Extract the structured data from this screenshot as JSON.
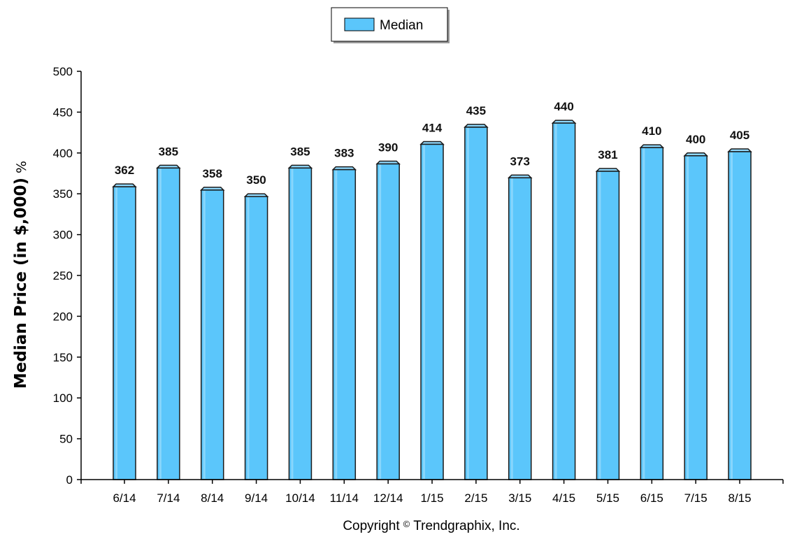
{
  "legend": {
    "label": "Median"
  },
  "footer": {
    "copyright_symbol": "©",
    "copyright_prefix": "Copyright",
    "copyright_owner": "Trendgraphix, Inc."
  },
  "colors": {
    "bar_fill": "#5bc6fb",
    "bar_stroke": "#1a1a1a",
    "axis": "#000000"
  },
  "chart_data": {
    "type": "bar",
    "categories": [
      "6/14",
      "7/14",
      "8/14",
      "9/14",
      "10/14",
      "11/14",
      "12/14",
      "1/15",
      "2/15",
      "3/15",
      "4/15",
      "5/15",
      "6/15",
      "7/15",
      "8/15"
    ],
    "series": [
      {
        "name": "Median",
        "values": [
          362,
          385,
          358,
          350,
          385,
          383,
          390,
          414,
          435,
          373,
          440,
          381,
          410,
          400,
          405
        ]
      }
    ],
    "data_labels": [
      "362",
      "385",
      "358",
      "350",
      "385",
      "383",
      "390",
      "414",
      "435",
      "373",
      "440",
      "381",
      "410",
      "400",
      "405"
    ],
    "ylabel": "Median Price (in $,000)",
    "ylabel_unit": "%",
    "xlabel": "",
    "ylim": [
      0,
      500
    ],
    "yticks": [
      0,
      50,
      100,
      150,
      200,
      250,
      300,
      350,
      400,
      450,
      500
    ],
    "grid": false,
    "legend_position": "top-center"
  }
}
